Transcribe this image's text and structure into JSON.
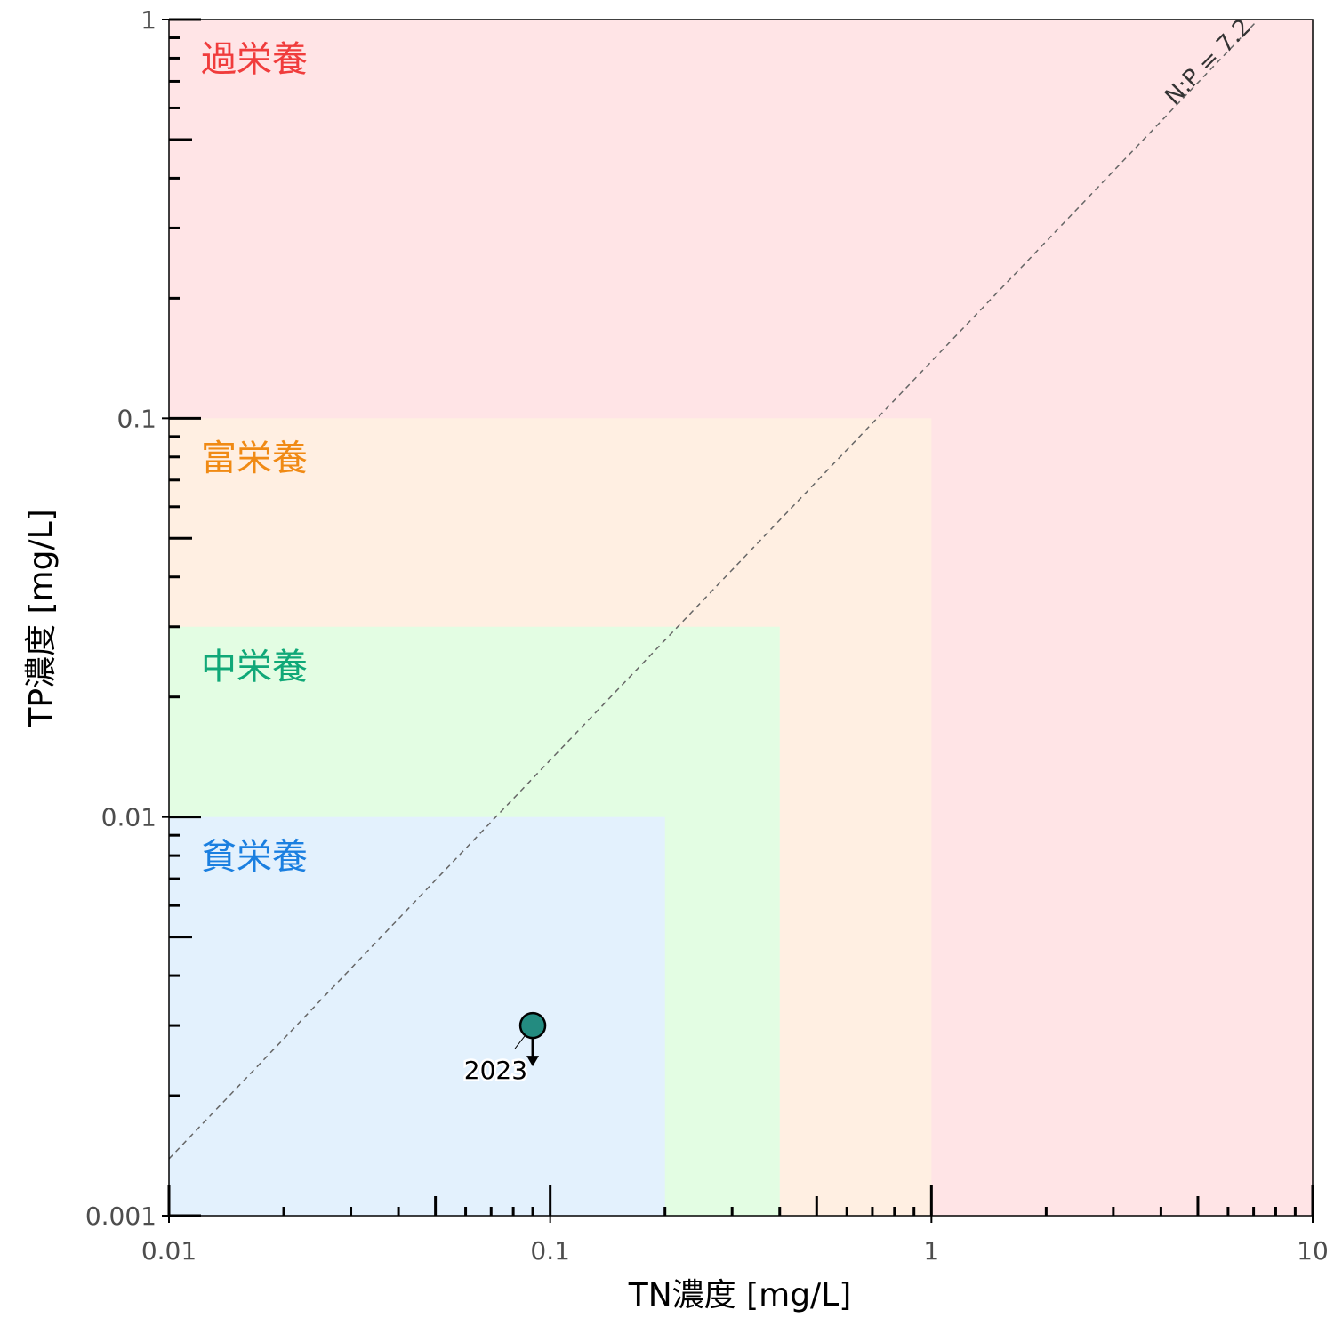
{
  "chart_data": {
    "type": "scatter",
    "xlabel": "TN濃度 [mg/L]",
    "ylabel": "TP濃度 [mg/L]",
    "x_scale": "log10",
    "y_scale": "log10",
    "xlim": [
      0.01,
      10
    ],
    "ylim": [
      0.001,
      1
    ],
    "x_tick_labels": [
      "0.01",
      "0.1",
      "1",
      "10"
    ],
    "y_tick_labels": [
      "0.001",
      "0.01",
      "0.1",
      "1"
    ],
    "grid": false,
    "zones": [
      {
        "label": "過栄養",
        "tn_max": 10,
        "tp_max": 1,
        "fill": "#ffe4e6",
        "text_color": "#f03c3c"
      },
      {
        "label": "富栄養",
        "tn_max": 1,
        "tp_max": 0.1,
        "fill": "#ffefe2",
        "text_color": "#f08a14"
      },
      {
        "label": "中栄養",
        "tn_max": 0.4,
        "tp_max": 0.03,
        "fill": "#e3fde3",
        "text_color": "#10a878"
      },
      {
        "label": "貧栄養",
        "tn_max": 0.2,
        "tp_max": 0.01,
        "fill": "#e3f1fd",
        "text_color": "#1a7fe0"
      }
    ],
    "ratio_line": {
      "label": "N:P = 7.2",
      "ratio": 7.2,
      "color": "#666666",
      "style": "dashed"
    },
    "points": [
      {
        "label": "2023",
        "tn": 0.09,
        "tp": 0.003,
        "color": "#238b80",
        "arrow": "down"
      }
    ]
  }
}
